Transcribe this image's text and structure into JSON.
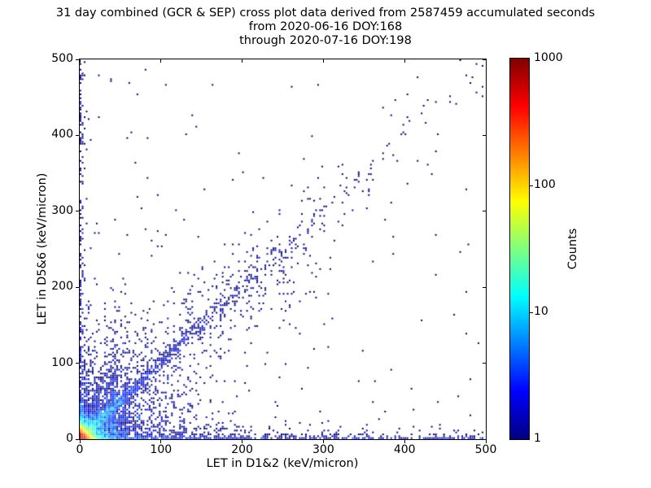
{
  "title": {
    "line1": "31 day combined (GCR & SEP) cross plot data derived from 2587459 accumulated seconds",
    "line2": "from 2020-06-16 DOY:168",
    "line3": "through 2020-07-16 DOY:198"
  },
  "axes": {
    "xlabel": "LET in D1&2 (keV/micron)",
    "ylabel": "LET in D5&6 (keV/micron)",
    "x_ticks": [
      0,
      100,
      200,
      300,
      400,
      500
    ],
    "y_ticks": [
      0,
      100,
      200,
      300,
      400,
      500
    ],
    "x_range": [
      0,
      500
    ],
    "y_range": [
      0,
      500
    ]
  },
  "colorbar": {
    "label": "Counts",
    "ticks": [
      1,
      10,
      100,
      1000
    ],
    "scale": "log",
    "range": [
      1,
      1000
    ],
    "colormap": "jet",
    "color_low": "#00007f",
    "color_high": "#7f0000"
  },
  "chart_data": {
    "type": "heatmap",
    "subtype": "2d-histogram cross plot (scatter of binned counts)",
    "title": "31 day combined (GCR & SEP) cross plot data derived from 2587459 accumulated seconds from 2020-06-16 DOY:168 through 2020-07-16 DOY:198",
    "xlabel": "LET in D1&2 (keV/micron)",
    "ylabel": "LET in D5&6 (keV/micron)",
    "xlim": [
      0,
      500
    ],
    "ylim": [
      0,
      500
    ],
    "accumulated_seconds": 2587459,
    "period": {
      "start": "2020-06-16",
      "start_doy": 168,
      "end": "2020-07-16",
      "end_doy": 198
    },
    "color_scale": {
      "label": "Counts",
      "scale": "log10",
      "min": 1,
      "max": 1000,
      "colormap": "jet"
    },
    "bins": 200,
    "seed": 168198,
    "features": [
      "intense red/orange/yellow hot spot of ~1000 counts hugging the origin (LET < ~15 in both detectors)",
      "cyan-to-blue correlated diagonal band y≈x extending from origin to ~350 keV/micron",
      "dense blue count-1..10 cloud within ~100 keV/micron of origin",
      "thin dense band of counts along the x-axis (D5&6 ≈ 0) across the full 0-500 range",
      "sparse vertical band of counts along the y-axis (D1&2 ≈ 0) up to 500",
      "faint vertical streaks near D1&2 ≈ 33-56 keV/micron",
      "loose cluster of single counts near (230, 205)",
      "isolated single-count (dark navy) speckle across the whole plane"
    ],
    "density_components": [
      {
        "form": "corner",
        "name": "origin-hotspot",
        "A": 2600,
        "s": 4.5
      },
      {
        "form": "radial2",
        "name": "near-origin-cloud",
        "A1": 25,
        "s1": 14,
        "A2": 3.5,
        "s2": 38
      },
      {
        "form": "diag",
        "name": "diagonal-band-tight",
        "A": 10,
        "sd": 3.5,
        "L": 28
      },
      {
        "form": "diag",
        "name": "diagonal-band-mid",
        "A": 2.2,
        "sd": 5,
        "L": 110
      },
      {
        "form": "diag",
        "name": "diagonal-band-wide",
        "A": 0.25,
        "sd": 28,
        "L": 130
      },
      {
        "form": "gauss2d",
        "name": "mid-diagonal-cluster",
        "A": 0.06,
        "cx": 230,
        "cy": 205,
        "sigma": 40
      },
      {
        "form": "edge_y",
        "name": "bottom-edge-band",
        "A": 5,
        "s": 2.5,
        "b": 0.25,
        "L": 120
      },
      {
        "form": "edge_y",
        "name": "bottom-wedge",
        "A": 2.2,
        "s": 10,
        "b": 0.0,
        "L": 120
      },
      {
        "form": "edge_x",
        "name": "left-edge-band",
        "A": 2.2,
        "s": 2.5,
        "b": 0.35,
        "L": 130
      },
      {
        "form": "vstreak",
        "name": "vertical-streak-43",
        "x0": 43,
        "sx": 2.2,
        "A": 3.2,
        "Ly": 60
      },
      {
        "form": "vstreak",
        "name": "vertical-streak-33",
        "x0": 33,
        "sx": 2.0,
        "A": 1.5,
        "Ly": 40
      },
      {
        "form": "vstreak",
        "name": "vertical-streak-56",
        "x0": 56,
        "sx": 2.5,
        "A": 1.2,
        "Ly": 45
      },
      {
        "form": "bg",
        "name": "sparse-background",
        "a": 0.0008,
        "bx": 0.004,
        "Lx": 180,
        "by": 0.004,
        "Ly": 180
      }
    ]
  }
}
